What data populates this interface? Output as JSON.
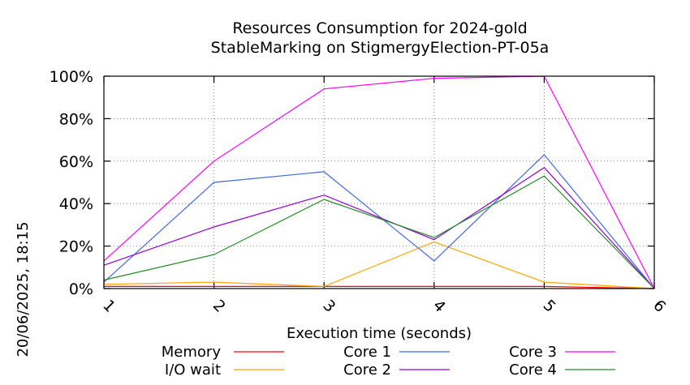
{
  "side_label": "20/06/2025, 18:15",
  "chart_data": {
    "type": "line",
    "title": "Resources Consumption for 2024-gold",
    "subtitle": "StableMarking on StigmergyElection-PT-05a",
    "xlabel": "Execution time (seconds)",
    "ylabel": "",
    "x": [
      1,
      2,
      3,
      4,
      5,
      6
    ],
    "x_ticks": [
      "1",
      "2",
      "3",
      "4",
      "5",
      "6"
    ],
    "xlim": [
      1,
      6
    ],
    "ylim": [
      0,
      100
    ],
    "y_ticks": [
      "0%",
      "20%",
      "40%",
      "60%",
      "80%",
      "100%"
    ],
    "y_tick_values": [
      0,
      20,
      40,
      60,
      80,
      100
    ],
    "grid": true,
    "legend_position": "bottom",
    "series": [
      {
        "name": "Memory",
        "color": "#ff0000",
        "values": [
          1,
          1,
          1,
          1,
          1,
          0
        ]
      },
      {
        "name": "I/O wait",
        "color": "#ffa500",
        "values": [
          2,
          3,
          1,
          22,
          3,
          0
        ]
      },
      {
        "name": "Core 1",
        "color": "#4169e1",
        "values": [
          3,
          50,
          55,
          13,
          63,
          0
        ]
      },
      {
        "name": "Core 2",
        "color": "#9400d3",
        "values": [
          11,
          29,
          44,
          23,
          57,
          0
        ]
      },
      {
        "name": "Core 3",
        "color": "#ff00ff",
        "values": [
          13,
          60,
          94,
          99,
          100,
          0
        ]
      },
      {
        "name": "Core 4",
        "color": "#228b22",
        "values": [
          4,
          16,
          42,
          24,
          53,
          0
        ]
      }
    ]
  }
}
